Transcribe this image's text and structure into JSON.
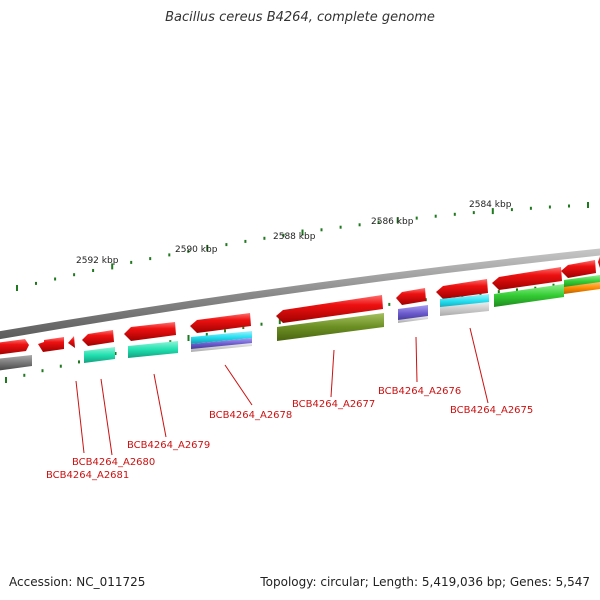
{
  "title": "Bacillus cereus B4264, complete genome",
  "footer": {
    "accession": "Accession: NC_011725",
    "summary": "Topology: circular; Length: 5,419,036 bp; Genes: 5,547"
  },
  "colors": {
    "backbone": "#8a8a8a",
    "tick": "#1f7a1f",
    "label": "#cc1111",
    "forward_gene": "#ee1111",
    "cog_teal": "#22e0b0",
    "cog_cyan": "#22ddee",
    "cog_olive": "#6b8e23",
    "cog_purple": "#6a5acd",
    "cog_green": "#33cc33",
    "cog_orange": "#ff8c00",
    "cog_grey": "#777777"
  },
  "scale_labels": [
    "2592 kbp",
    "2590 kbp",
    "2588 kbp",
    "2586 kbp",
    "2584 kbp"
  ],
  "gene_labels": [
    "BCB4264_A2681",
    "BCB4264_A2680",
    "BCB4264_A2679",
    "BCB4264_A2678",
    "BCB4264_A2677",
    "BCB4264_A2676",
    "BCB4264_A2675"
  ]
}
